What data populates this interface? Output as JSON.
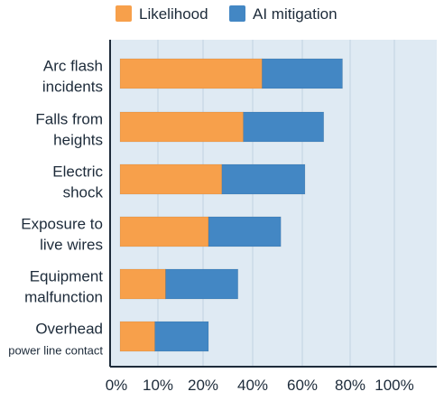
{
  "chart_data": {
    "type": "bar",
    "orientation": "horizontal",
    "stacked": true,
    "categories": [
      [
        "Arc flash",
        "incidents"
      ],
      [
        "Falls from",
        "heights"
      ],
      [
        "Electric",
        "shock"
      ],
      [
        "Exposure to",
        "live wires"
      ],
      [
        "Equipment",
        "malfunction"
      ],
      [
        "Overhead",
        "power line contact"
      ]
    ],
    "series": [
      {
        "name": "Likelihood",
        "color": "#f7a04b",
        "values": [
          53,
          46,
          38,
          33,
          17,
          13
        ]
      },
      {
        "name": "AI mitigation",
        "color": "#4387c4",
        "values": [
          30,
          30,
          31,
          27,
          27,
          20
        ]
      }
    ],
    "x_ticks": [
      "0%",
      "10%",
      "20%",
      "40%",
      "60%",
      "80%",
      "100%"
    ],
    "grid": true,
    "legend_position": "top"
  }
}
